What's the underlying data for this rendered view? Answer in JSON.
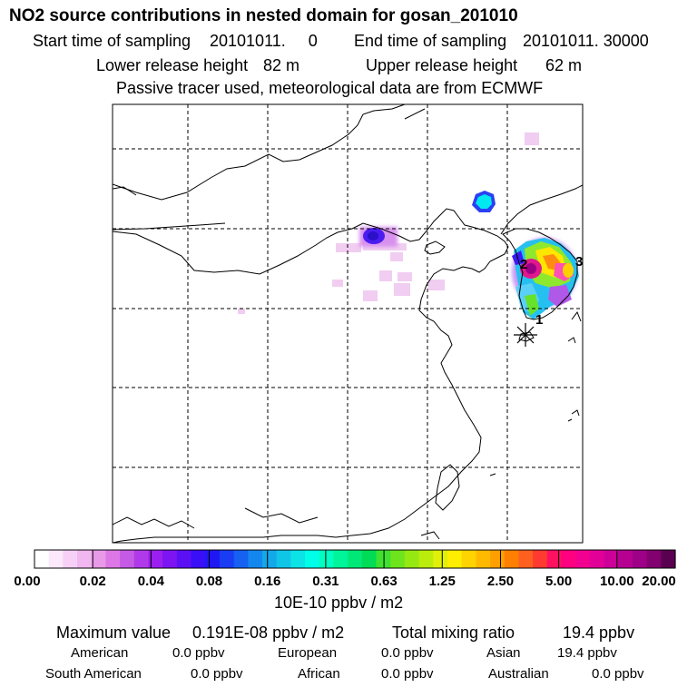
{
  "title": "NO2 source contributions in nested domain for gosan_201010",
  "sampling": {
    "start_label": "Start time of sampling",
    "start_value": "20101011.     0",
    "end_label": "End time of sampling",
    "end_value": "20101011. 30000"
  },
  "release": {
    "lower_label": "Lower release height",
    "lower_value": "82 m",
    "upper_label": "Upper release height",
    "upper_value": "62 m"
  },
  "tracer_note": "Passive tracer used, meteorological data are from ECMWF",
  "map": {
    "cluster_labels": [
      "1",
      "2",
      "3"
    ],
    "receptor_symbol": "gosan-receptor"
  },
  "colorbar": {
    "tick_labels": [
      "0.00",
      "0.02",
      "0.04",
      "0.08",
      "0.16",
      "0.31",
      "0.63",
      "1.25",
      "2.50",
      "5.00",
      "10.00",
      "20.00"
    ],
    "unit": "10E-10 ppbv / m2",
    "colors": [
      "#ffffff",
      "#fbe8fb",
      "#f6d0f6",
      "#f0b7f0",
      "#e89ae8",
      "#dd77e6",
      "#c55ae6",
      "#b03ae9",
      "#9a1ff0",
      "#7c15f2",
      "#5b10f4",
      "#3a0ef6",
      "#1f18f4",
      "#1a3cf4",
      "#1660f2",
      "#1487ee",
      "#12a8ea",
      "#10c6e6",
      "#0ce3e6",
      "#00ffe8",
      "#00ffc0",
      "#00f59a",
      "#00e878",
      "#00dc55",
      "#40e030",
      "#6ee41c",
      "#96e812",
      "#bcec0c",
      "#e0f00a",
      "#ffee00",
      "#ffd400",
      "#ffba00",
      "#ffa000",
      "#ff8000",
      "#ff6020",
      "#ff3a30",
      "#ff1060",
      "#ff0080",
      "#f20090",
      "#e20098",
      "#cc0098",
      "#b60092",
      "#9e0088",
      "#820070",
      "#5a0050"
    ]
  },
  "summary": {
    "max_label": "Maximum value",
    "max_value": "0.191E-08 ppbv / m2",
    "total_label": "Total mixing ratio",
    "total_value": "19.4 ppbv",
    "regions": [
      {
        "name": "American",
        "value": "0.0 ppbv"
      },
      {
        "name": "European",
        "value": "0.0 ppbv"
      },
      {
        "name": "Asian",
        "value": "19.4 ppbv"
      },
      {
        "name": "South American",
        "value": "0.0 ppbv"
      },
      {
        "name": "African",
        "value": "0.0 ppbv"
      },
      {
        "name": "Australian",
        "value": "0.0 ppbv"
      }
    ]
  }
}
